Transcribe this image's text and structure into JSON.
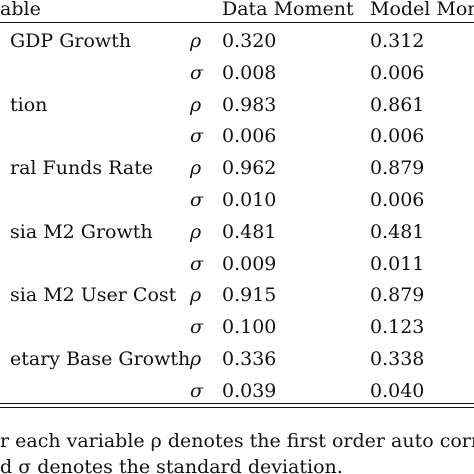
{
  "table": {
    "headers": {
      "variable": "able",
      "data_moment": "Data Moment",
      "model_moment": "Model Mom"
    },
    "rows": [
      {
        "variable": "GDP Growth",
        "stat": "ρ",
        "data": "0.320",
        "model": "0.312"
      },
      {
        "variable": "",
        "stat": "σ",
        "data": "0.008",
        "model": "0.006"
      },
      {
        "variable": "tion",
        "stat": "ρ",
        "data": "0.983",
        "model": "0.861"
      },
      {
        "variable": "",
        "stat": "σ",
        "data": "0.006",
        "model": "0.006"
      },
      {
        "variable": "ral Funds Rate",
        "stat": "ρ",
        "data": "0.962",
        "model": "0.879"
      },
      {
        "variable": "",
        "stat": "σ",
        "data": "0.010",
        "model": "0.006"
      },
      {
        "variable": "sia M2 Growth",
        "stat": "ρ",
        "data": "0.481",
        "model": "0.481"
      },
      {
        "variable": "",
        "stat": "σ",
        "data": "0.009",
        "model": "0.011"
      },
      {
        "variable": "sia M2 User Cost",
        "stat": "ρ",
        "data": "0.915",
        "model": "0.879"
      },
      {
        "variable": "",
        "stat": "σ",
        "data": "0.100",
        "model": "0.123"
      },
      {
        "variable": "etary Base Growth",
        "stat": "ρ",
        "data": "0.336",
        "model": "0.338"
      },
      {
        "variable": "",
        "stat": "σ",
        "data": "0.039",
        "model": "0.040"
      }
    ]
  },
  "footnote": {
    "line1": "r each variable ρ denotes the first order auto correla",
    "line2": "d σ denotes the standard deviation."
  }
}
